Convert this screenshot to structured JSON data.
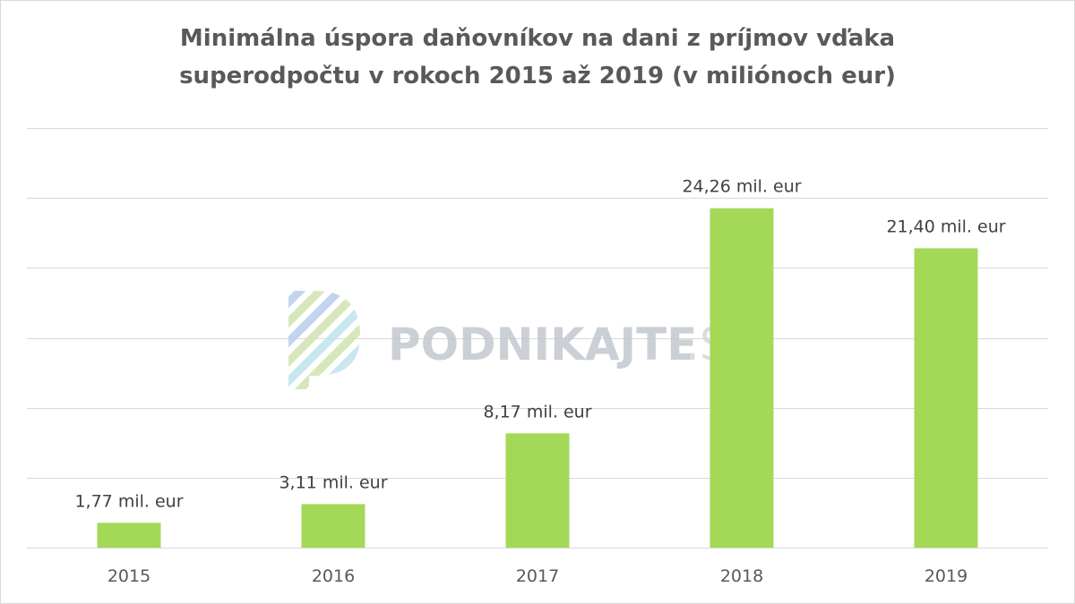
{
  "chart_data": {
    "type": "bar",
    "title_line1": "Minimálna úspora daňovníkov na dani z príjmov vďaka",
    "title_line2": "superodpočtu v rokoch 2015 až 2019 (v miliónoch eur)",
    "categories": [
      "2015",
      "2016",
      "2017",
      "2018",
      "2019"
    ],
    "values": [
      1.77,
      3.11,
      8.17,
      24.26,
      21.4
    ],
    "data_labels": [
      "1,77 mil. eur",
      "3,11 mil. eur",
      "8,17 mil. eur",
      "24,26 mil. eur",
      "21,40 mil. eur"
    ],
    "ylim": [
      0,
      30
    ],
    "grid": true,
    "bar_color": "#a3d957"
  },
  "watermark": {
    "text_main": "PODNIKAJTE",
    "text_suffix": ".SK"
  }
}
